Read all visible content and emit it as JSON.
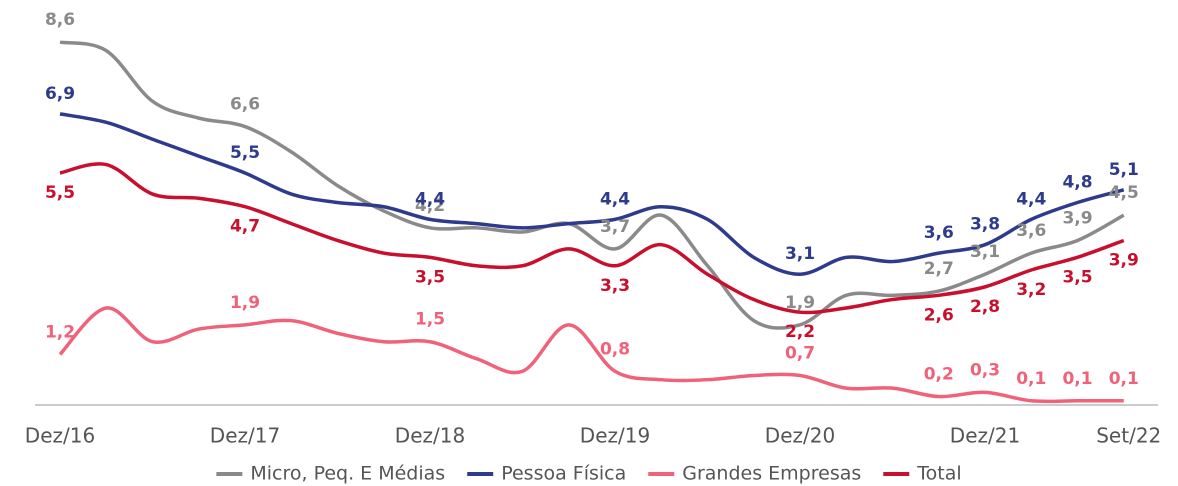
{
  "chart_data": {
    "type": "line",
    "categories": [
      "Dez/16",
      null,
      null,
      null,
      "Dez/17",
      null,
      null,
      null,
      "Dez/18",
      null,
      null,
      null,
      "Dez/19",
      null,
      null,
      null,
      "Dez/20",
      null,
      null,
      null,
      "Dez/21",
      null,
      null,
      "Set/22"
    ],
    "ylim": [
      0,
      9.6
    ],
    "series": [
      {
        "name": "Micro, Peq. E Médias",
        "color": "#8a8a8a",
        "values": [
          8.6,
          8.4,
          7.2,
          6.8,
          6.6,
          6.0,
          5.2,
          4.6,
          4.2,
          4.2,
          4.1,
          4.3,
          3.7,
          4.5,
          3.3,
          2.0,
          1.9,
          2.6,
          2.6,
          2.7,
          3.1,
          3.6,
          3.9,
          4.5
        ],
        "value_labels": [
          "8,6",
          null,
          null,
          null,
          "6,6",
          null,
          null,
          null,
          "4,2",
          null,
          null,
          null,
          "3,7",
          null,
          null,
          null,
          "1,9",
          null,
          null,
          "2,7",
          "3,1",
          "3,6",
          "3,9",
          "4,5"
        ]
      },
      {
        "name": "Pessoa Física",
        "color": "#2e3a8c",
        "values": [
          6.9,
          6.7,
          6.3,
          5.9,
          5.5,
          5.0,
          4.8,
          4.7,
          4.4,
          4.3,
          4.2,
          4.3,
          4.4,
          4.7,
          4.4,
          3.5,
          3.1,
          3.5,
          3.4,
          3.6,
          3.8,
          4.4,
          4.8,
          5.1
        ],
        "value_labels": [
          "6,9",
          null,
          null,
          null,
          "5,5",
          null,
          null,
          null,
          "4,4",
          null,
          null,
          null,
          "4,4",
          null,
          null,
          null,
          "3,1",
          null,
          null,
          "3,6",
          "3,8",
          "4,4",
          "4,8",
          "5,1"
        ]
      },
      {
        "name": "Grandes Empresas",
        "color": "#f0627a",
        "values": [
          1.2,
          2.3,
          1.5,
          1.8,
          1.9,
          2.0,
          1.7,
          1.5,
          1.5,
          1.1,
          0.8,
          1.9,
          0.8,
          0.6,
          0.6,
          0.7,
          0.7,
          0.4,
          0.4,
          0.2,
          0.3,
          0.1,
          0.1,
          0.1
        ],
        "value_labels": [
          "1,2",
          null,
          null,
          null,
          "1,9",
          null,
          null,
          null,
          "1,5",
          null,
          null,
          null,
          "0,8",
          null,
          null,
          null,
          "0,7",
          null,
          null,
          "0,2",
          "0,3",
          "0,1",
          "0,1",
          "0,1"
        ]
      },
      {
        "name": "Total",
        "color": "#c8102e",
        "values": [
          5.5,
          5.7,
          5.0,
          4.9,
          4.7,
          4.3,
          3.9,
          3.6,
          3.5,
          3.3,
          3.3,
          3.7,
          3.3,
          3.8,
          3.1,
          2.5,
          2.2,
          2.3,
          2.5,
          2.6,
          2.8,
          3.2,
          3.5,
          3.9
        ],
        "value_labels": [
          "5,5",
          null,
          null,
          null,
          "4,7",
          null,
          null,
          null,
          "3,5",
          null,
          null,
          null,
          "3,3",
          null,
          null,
          null,
          "2,2",
          null,
          null,
          "2,6",
          "2,8",
          "3,2",
          "3,5",
          "3,9"
        ]
      }
    ]
  }
}
